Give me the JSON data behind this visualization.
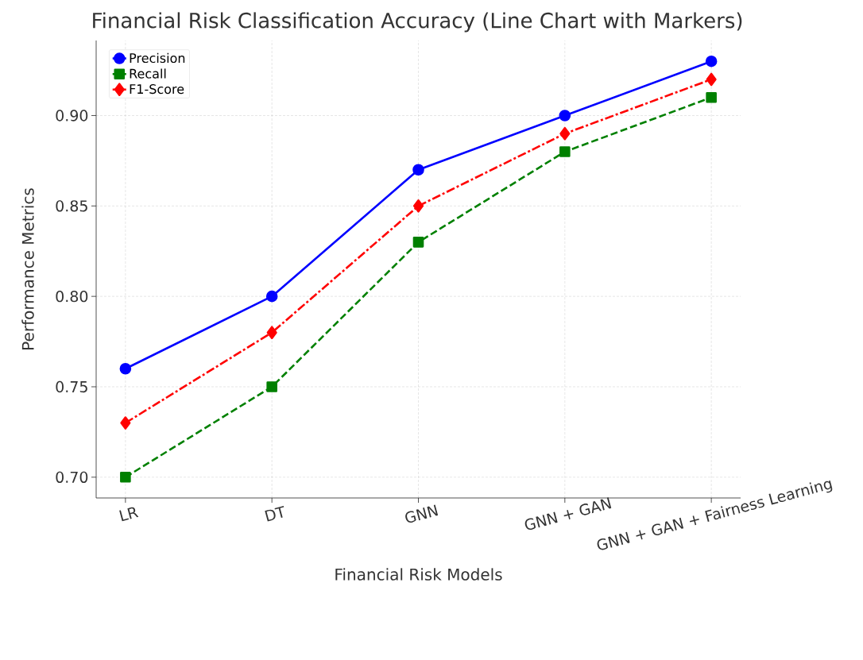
{
  "chart_data": {
    "type": "line",
    "title": "Financial Risk Classification Accuracy (Line Chart with Markers)",
    "xlabel": "Financial Risk Models",
    "ylabel": "Performance Metrics",
    "categories": [
      "LR",
      "DT",
      "GNN",
      "GNN + GAN",
      "GNN + GAN + Fairness Learning"
    ],
    "series": [
      {
        "name": "Precision",
        "color": "#0000ff",
        "marker": "circle",
        "line_style": "solid",
        "values": [
          0.76,
          0.8,
          0.87,
          0.9,
          0.93
        ]
      },
      {
        "name": "Recall",
        "color": "#008000",
        "marker": "square",
        "line_style": "dashed",
        "values": [
          0.7,
          0.75,
          0.83,
          0.88,
          0.91
        ]
      },
      {
        "name": "F1-Score",
        "color": "#ff0000",
        "marker": "diamond",
        "line_style": "dashdot",
        "values": [
          0.73,
          0.78,
          0.85,
          0.89,
          0.92
        ]
      }
    ],
    "ylim": [
      0.6885,
      0.9415
    ],
    "yticks": [
      {
        "value": 0.7,
        "label": "0.70"
      },
      {
        "value": 0.75,
        "label": "0.75"
      },
      {
        "value": 0.8,
        "label": "0.80"
      },
      {
        "value": 0.85,
        "label": "0.85"
      },
      {
        "value": 0.9,
        "label": "0.90"
      }
    ],
    "grid": true,
    "legend": "top left"
  }
}
